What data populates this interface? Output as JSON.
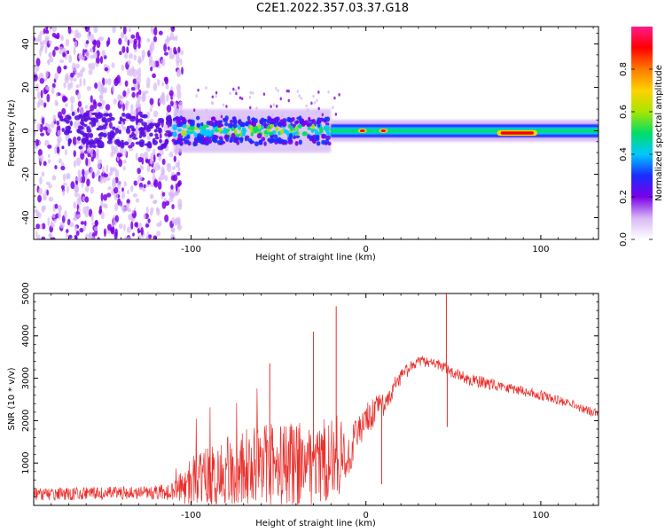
{
  "figure_title": "C2E1.2022.357.03.37.G18",
  "colors": {
    "snr_line": "#e8302c",
    "spectrogram_core": "#ff0000",
    "spectrogram_mid": "#00dd66",
    "spectrogram_low": "#7a00e8",
    "spectrogram_faint": "#d7b8f5"
  },
  "chart_data": [
    {
      "type": "heatmap",
      "xlabel": "Height of straight line (km)",
      "ylabel": "Frequency (Hz)",
      "xlim": [
        -190,
        133
      ],
      "ylim": [
        -50,
        48
      ],
      "xticks": [
        -100,
        0,
        100
      ],
      "xtick_labels": [
        "-100",
        "0",
        "100"
      ],
      "yticks": [
        -40,
        -20,
        0,
        20,
        40
      ],
      "ytick_labels": [
        "-40",
        "-20",
        "0",
        "20",
        "40"
      ],
      "grid": false,
      "colorbar": {
        "label": "Normalized spectral amplitude",
        "range": [
          0.0,
          1.0
        ],
        "ticks": [
          0.0,
          0.2,
          0.4,
          0.6,
          0.8
        ],
        "tick_labels": [
          "0.0",
          "0.2",
          "0.4",
          "0.6",
          "0.8"
        ],
        "colormap": [
          "#ffffff",
          "#d7b8f5",
          "#7a00e8",
          "#1a2cff",
          "#00c8ff",
          "#00dd66",
          "#a8e600",
          "#ffd200",
          "#ff7a00",
          "#ff0000",
          "#ff1a8c"
        ]
      },
      "features": [
        {
          "x_range": [
            -190,
            -105
          ],
          "frequency_range": [
            -50,
            48
          ],
          "amplitude": 0.15,
          "description": "scattered noise"
        },
        {
          "x_range": [
            -110,
            -20
          ],
          "center_frequency": 0,
          "half_width": 6,
          "amplitude": 0.45
        },
        {
          "x_range": [
            -20,
            133
          ],
          "center_frequency": 0,
          "half_width": 3,
          "amplitude": 0.55
        },
        {
          "x": -2,
          "frequency": 0,
          "amplitude": 0.95
        },
        {
          "x": 10,
          "frequency": 0,
          "amplitude": 0.9
        },
        {
          "x_range": [
            75,
            98
          ],
          "frequency": -1,
          "amplitude": 1.0
        }
      ]
    },
    {
      "type": "line",
      "xlabel": "Height of straight line (km)",
      "ylabel": "SNR (10 * v/v)",
      "xlim": [
        -190,
        133
      ],
      "ylim": [
        0,
        5000
      ],
      "xticks": [
        -100,
        0,
        100
      ],
      "xtick_labels": [
        "-100",
        "0",
        "100"
      ],
      "yticks": [
        1000,
        2000,
        3000,
        4000,
        5000
      ],
      "ytick_labels": [
        "1000",
        "2000",
        "3000",
        "4000",
        "5000"
      ],
      "grid": false,
      "series": [
        {
          "x": [
            -190,
            -160,
            -130,
            -110,
            -100,
            -80,
            -60,
            -40,
            -25,
            -15,
            -8,
            0,
            10,
            20,
            25,
            30,
            40,
            45,
            50,
            60,
            80,
            100,
            120,
            133
          ],
          "y": [
            250,
            280,
            300,
            320,
            550,
            750,
            900,
            1000,
            1050,
            1100,
            1400,
            2000,
            2400,
            3000,
            3250,
            3400,
            3350,
            3250,
            3100,
            2950,
            2800,
            2600,
            2350,
            2150
          ],
          "spread": [
            150,
            150,
            150,
            200,
            600,
            900,
            1000,
            1000,
            1000,
            900,
            600,
            400,
            300,
            200,
            150,
            120,
            120,
            150,
            150,
            150,
            130,
            120,
            110,
            100
          ]
        }
      ],
      "spikes": [
        {
          "x": -17,
          "y": 4700
        },
        {
          "x": -30,
          "y": 4100
        },
        {
          "x": -55,
          "y": 3350
        },
        {
          "x": 46,
          "y": 5000
        },
        {
          "x": 46.5,
          "y": 1850
        },
        {
          "x": 9,
          "y": 500
        }
      ]
    }
  ]
}
